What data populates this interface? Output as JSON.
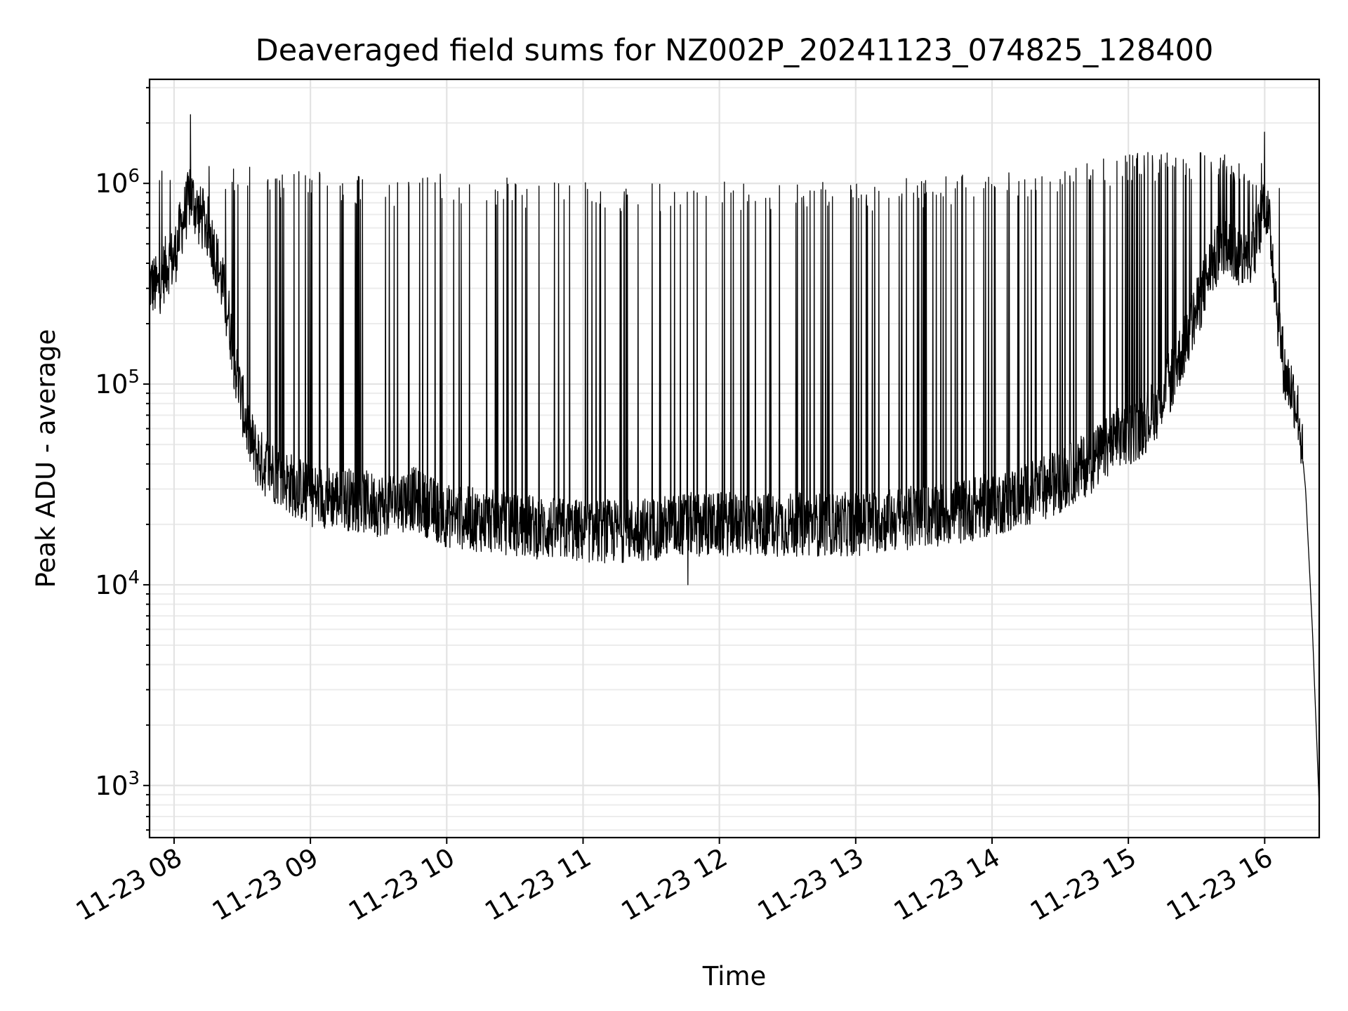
{
  "chart_data": {
    "type": "line",
    "title": "Deaveraged field sums for NZ002P_20241123_074825_128400",
    "xlabel": "Time",
    "ylabel": "Peak ADU - average",
    "yscale": "log",
    "grid": "on (major and minor)",
    "x_range_hours": [
      7.82,
      16.4
    ],
    "ylim": [
      550,
      3300000
    ],
    "x_ticks": [
      {
        "value": 8,
        "label": "11-23 08"
      },
      {
        "value": 9,
        "label": "11-23 09"
      },
      {
        "value": 10,
        "label": "11-23 10"
      },
      {
        "value": 11,
        "label": "11-23 11"
      },
      {
        "value": 12,
        "label": "11-23 12"
      },
      {
        "value": 13,
        "label": "11-23 13"
      },
      {
        "value": 14,
        "label": "11-23 14"
      },
      {
        "value": 15,
        "label": "11-23 15"
      },
      {
        "value": 16,
        "label": "11-23 16"
      }
    ],
    "y_ticks": [
      {
        "value": 1000,
        "base": "10",
        "exp": "3"
      },
      {
        "value": 10000,
        "base": "10",
        "exp": "4"
      },
      {
        "value": 100000,
        "base": "10",
        "exp": "5"
      },
      {
        "value": 1000000,
        "base": "10",
        "exp": "6"
      }
    ],
    "series": [
      {
        "color": "#000000",
        "x_hours": [
          7.82,
          7.88,
          7.95,
          8.0,
          8.05,
          8.12,
          8.18,
          8.25,
          8.3,
          8.35,
          8.4,
          8.45,
          8.5,
          8.55,
          8.6,
          8.65,
          8.75,
          8.85,
          9.0,
          9.25,
          9.5,
          9.75,
          10.0,
          10.25,
          10.5,
          10.75,
          11.0,
          11.25,
          11.5,
          11.75,
          12.0,
          12.25,
          12.5,
          12.75,
          13.0,
          13.25,
          13.5,
          13.75,
          14.0,
          14.25,
          14.5,
          14.75,
          14.9,
          15.0,
          15.1,
          15.2,
          15.3,
          15.4,
          15.5,
          15.6,
          15.7,
          15.8,
          15.9,
          15.95,
          16.0,
          16.05,
          16.1,
          16.15,
          16.2,
          16.25,
          16.3,
          16.35,
          16.4
        ],
        "y_base": [
          320000,
          300000,
          400000,
          420000,
          600000,
          880000,
          700000,
          600000,
          450000,
          320000,
          220000,
          120000,
          80000,
          56000,
          45000,
          40000,
          36000,
          32000,
          28000,
          27000,
          25000,
          27000,
          22000,
          21000,
          20000,
          19000,
          18500,
          18500,
          19000,
          20000,
          20000,
          20000,
          20000,
          20000,
          20000,
          21000,
          22000,
          23000,
          25000,
          28000,
          33000,
          42000,
          52000,
          56000,
          62000,
          75000,
          100000,
          150000,
          230000,
          380000,
          480000,
          440000,
          420000,
          550000,
          880000,
          500000,
          210000,
          110000,
          95000,
          70000,
          30000,
          6000,
          800
        ],
        "spike_peaks_by_hour": [
          {
            "x": 8.0,
            "y": 1300000
          },
          {
            "x": 8.5,
            "y": 1200000
          },
          {
            "x": 9.0,
            "y": 1150000
          },
          {
            "x": 9.5,
            "y": 1050000
          },
          {
            "x": 10.0,
            "y": 1100000
          },
          {
            "x": 10.5,
            "y": 1050000
          },
          {
            "x": 11.0,
            "y": 1000000
          },
          {
            "x": 11.5,
            "y": 1000000
          },
          {
            "x": 12.0,
            "y": 1000000
          },
          {
            "x": 12.5,
            "y": 1000000
          },
          {
            "x": 13.0,
            "y": 1000000
          },
          {
            "x": 13.5,
            "y": 1050000
          },
          {
            "x": 14.0,
            "y": 1100000
          },
          {
            "x": 14.5,
            "y": 1200000
          },
          {
            "x": 15.0,
            "y": 1400000
          },
          {
            "x": 15.5,
            "y": 1450000
          },
          {
            "x": 15.9,
            "y": 1300000
          }
        ],
        "notable_points": [
          {
            "x": 8.12,
            "y": 2200000
          },
          {
            "x": 16.0,
            "y": 1800000
          },
          {
            "x": 11.77,
            "y": 10000
          },
          {
            "x": 16.4,
            "y": 800
          }
        ]
      }
    ]
  }
}
